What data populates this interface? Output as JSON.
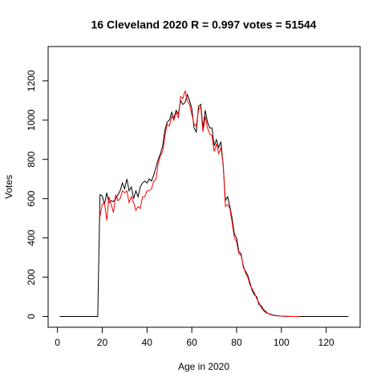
{
  "chart_data": {
    "type": "line",
    "title": "16 Cleveland 2020 R = 0.997 votes = 51544",
    "x_label": "Age in 2020",
    "y_label": "Votes",
    "x": [
      1,
      2,
      3,
      4,
      5,
      6,
      7,
      8,
      9,
      10,
      11,
      12,
      13,
      14,
      15,
      16,
      17,
      18,
      19,
      20,
      21,
      22,
      23,
      24,
      25,
      26,
      27,
      28,
      29,
      30,
      31,
      32,
      33,
      34,
      35,
      36,
      37,
      38,
      39,
      40,
      41,
      42,
      43,
      44,
      45,
      46,
      47,
      48,
      49,
      50,
      51,
      52,
      53,
      54,
      55,
      56,
      57,
      58,
      59,
      60,
      61,
      62,
      63,
      64,
      65,
      66,
      67,
      68,
      69,
      70,
      71,
      72,
      73,
      74,
      75,
      76,
      77,
      78,
      79,
      80,
      81,
      82,
      83,
      84,
      85,
      86,
      87,
      88,
      89,
      90,
      91,
      92,
      93,
      94,
      95,
      96,
      97,
      98,
      99,
      100,
      101,
      102,
      103,
      104,
      105,
      106,
      107,
      108,
      109,
      110,
      111,
      112,
      113,
      114,
      115,
      116,
      117,
      118,
      119,
      120,
      121,
      122,
      123,
      124,
      125,
      126,
      127,
      128,
      129,
      130
    ],
    "series": [
      {
        "color": "#000000",
        "values": [
          0,
          0,
          0,
          0,
          0,
          0,
          0,
          0,
          0,
          0,
          0,
          0,
          0,
          0,
          0,
          0,
          0,
          0,
          620,
          615,
          570,
          630,
          580,
          590,
          585,
          600,
          620,
          640,
          680,
          650,
          700,
          640,
          660,
          600,
          640,
          610,
          660,
          680,
          690,
          680,
          700,
          690,
          720,
          760,
          800,
          830,
          870,
          950,
          990,
          1000,
          1040,
          1010,
          1050,
          1030,
          1100,
          1080,
          1090,
          1130,
          1100,
          1060,
          960,
          940,
          1070,
          1080,
          960,
          1050,
          990,
          960,
          960,
          870,
          900,
          860,
          890,
          770,
          590,
          610,
          560,
          500,
          420,
          400,
          330,
          320,
          250,
          230,
          210,
          170,
          130,
          110,
          100,
          60,
          55,
          35,
          25,
          15,
          12,
          8,
          6,
          4,
          3,
          2,
          1,
          0,
          0,
          0,
          0,
          0,
          0,
          0,
          0,
          0,
          0,
          0,
          0,
          0,
          0,
          0,
          0,
          0,
          0,
          0,
          0,
          0,
          0,
          0,
          0,
          0,
          0,
          0,
          0,
          0
        ]
      },
      {
        "color": "#ff0000",
        "values": [
          null,
          null,
          null,
          null,
          null,
          null,
          null,
          null,
          null,
          null,
          null,
          null,
          null,
          null,
          null,
          null,
          null,
          null,
          510,
          570,
          580,
          490,
          610,
          570,
          530,
          620,
          590,
          600,
          640,
          630,
          640,
          580,
          610,
          580,
          540,
          560,
          550,
          610,
          610,
          640,
          640,
          650,
          690,
          700,
          780,
          820,
          840,
          920,
          980,
          970,
          1020,
          1000,
          1040,
          1010,
          1120,
          1110,
          1150,
          1100,
          1080,
          1030,
          980,
          970,
          1050,
          1070,
          940,
          1020,
          960,
          930,
          920,
          840,
          880,
          830,
          860,
          780,
          560,
          570,
          550,
          480,
          400,
          380,
          320,
          310,
          260,
          220,
          200,
          160,
          140,
          120,
          90,
          70,
          45,
          30,
          20,
          15,
          10,
          6,
          4,
          3,
          2,
          2,
          1,
          1,
          1,
          0,
          0,
          0,
          0,
          0,
          null,
          null,
          null,
          null,
          null,
          null,
          null,
          null,
          null,
          null,
          null,
          null,
          null,
          null,
          null,
          null,
          null,
          null,
          null,
          null,
          null,
          null
        ]
      }
    ],
    "xlim": [
      -4.16,
      135.16
    ],
    "xticks": [
      0,
      20,
      40,
      60,
      80,
      100,
      120
    ],
    "ylim": [
      -55,
      1375
    ],
    "yticks": [
      0,
      200,
      400,
      600,
      800,
      1000,
      1200
    ]
  }
}
